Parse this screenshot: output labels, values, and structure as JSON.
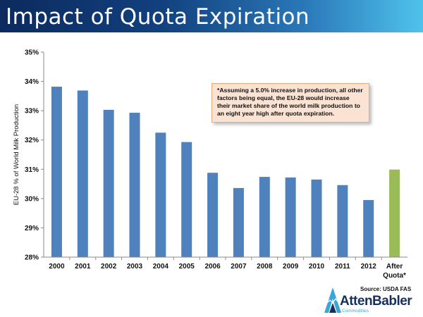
{
  "header": {
    "title": "Impact of Quota Expiration"
  },
  "chart_data": {
    "type": "bar",
    "categories": [
      "2000",
      "2001",
      "2002",
      "2003",
      "2004",
      "2005",
      "2006",
      "2007",
      "2008",
      "2009",
      "2010",
      "2011",
      "2012",
      "After Quota*"
    ],
    "values": [
      33.82,
      33.69,
      33.03,
      32.93,
      32.25,
      31.93,
      30.88,
      30.36,
      30.74,
      30.72,
      30.65,
      30.46,
      29.95,
      30.99
    ],
    "ylabel": "EU-28 % of World Milk Production",
    "ylim": [
      28,
      35
    ],
    "yticks": [
      "28%",
      "29%",
      "30%",
      "31%",
      "32%",
      "33%",
      "34%",
      "35%"
    ],
    "grid": false,
    "legend": "none",
    "colors": {
      "historical": "#4f81bd",
      "projected": "#9bbb59"
    },
    "annotation": "*Assuming a 5.0% increase in production, all other factors being equal, the EU-28 would increase their market share of the world milk production to an eight year high after quota expiration."
  },
  "source": "Source: USDA FAS",
  "logo": {
    "name": "AttenBabler",
    "sub": "Commodities",
    "icon": "atten-babler-mountain-icon"
  }
}
